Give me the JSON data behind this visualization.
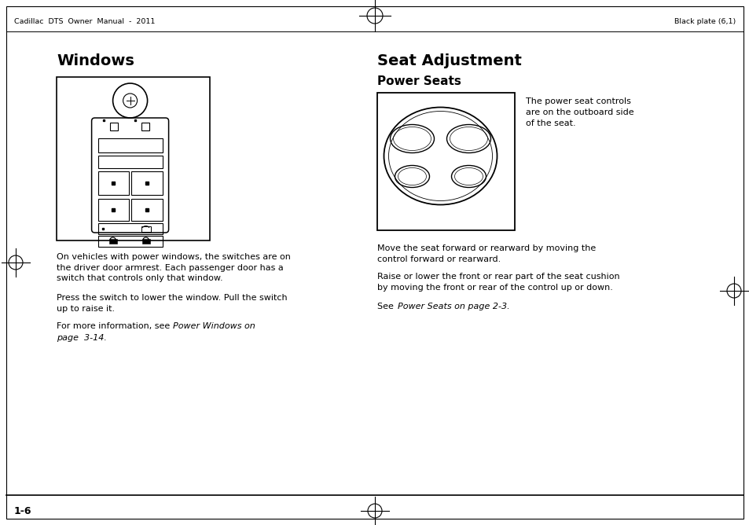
{
  "bg_color": "#ffffff",
  "page_width": 9.54,
  "page_height": 6.68,
  "header_left": "Cadillac  DTS  Owner  Manual  -  2011",
  "header_right": "Black plate (6,1)",
  "footer_text": "1-6",
  "windows_title": "Windows",
  "seat_title": "Seat Adjustment",
  "power_seats_subtitle": "Power Seats",
  "seat_side_text": "The power seat controls\nare on the outboard side\nof the seat.",
  "windows_para1": "On vehicles with power windows, the switches are on\nthe driver door armrest. Each passenger door has a\nswitch that controls only that window.",
  "windows_para2": "Press the switch to lower the window. Pull the switch\nup to raise it.",
  "seat_para1": "Move the seat forward or rearward by moving the\ncontrol forward or rearward.",
  "seat_para2": "Raise or lower the front or rear part of the seat cushion\nby moving the front or rear of the control up or down.",
  "text_color": "#000000",
  "line_color": "#000000"
}
